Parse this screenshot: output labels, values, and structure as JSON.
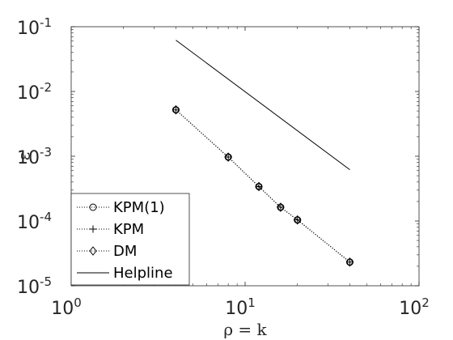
{
  "chart_data": {
    "type": "line",
    "title": "",
    "xlabel": "ρ = k",
    "ylabel": "ε",
    "xscale": "log",
    "yscale": "log",
    "xlim": [
      1,
      100
    ],
    "ylim": [
      1e-05,
      0.1
    ],
    "x_ticks": [
      {
        "base": "10",
        "exp": "0"
      },
      {
        "base": "10",
        "exp": "1"
      },
      {
        "base": "10",
        "exp": "2"
      }
    ],
    "y_ticks": [
      {
        "base": "10",
        "exp": "-5"
      },
      {
        "base": "10",
        "exp": "-4"
      },
      {
        "base": "10",
        "exp": "-3"
      },
      {
        "base": "10",
        "exp": "-2"
      },
      {
        "base": "10",
        "exp": "-1"
      }
    ],
    "grid": false,
    "legend_position": "bottom-left",
    "series": [
      {
        "name": "KPM(1)",
        "marker": "circle",
        "line": "dotted",
        "color": "#000000",
        "x": [
          4,
          8,
          12,
          16,
          20,
          40
        ],
        "y": [
          0.0052,
          0.00097,
          0.00034,
          0.000163,
          0.000104,
          2.32e-05
        ]
      },
      {
        "name": "KPM",
        "marker": "plus",
        "line": "dotted",
        "color": "#000000",
        "x": [
          4,
          8,
          12,
          16,
          20,
          40
        ],
        "y": [
          0.0052,
          0.00097,
          0.00034,
          0.000163,
          0.000104,
          2.32e-05
        ]
      },
      {
        "name": "DM",
        "marker": "diamond",
        "line": "dotted",
        "color": "#000000",
        "x": [
          4,
          8,
          12,
          16,
          20,
          40
        ],
        "y": [
          0.0052,
          0.00097,
          0.00034,
          0.000163,
          0.000104,
          2.32e-05
        ]
      },
      {
        "name": "Helpline",
        "marker": "none",
        "line": "solid",
        "color": "#000000",
        "x": [
          4,
          40
        ],
        "y": [
          0.062,
          0.00062
        ]
      }
    ]
  }
}
